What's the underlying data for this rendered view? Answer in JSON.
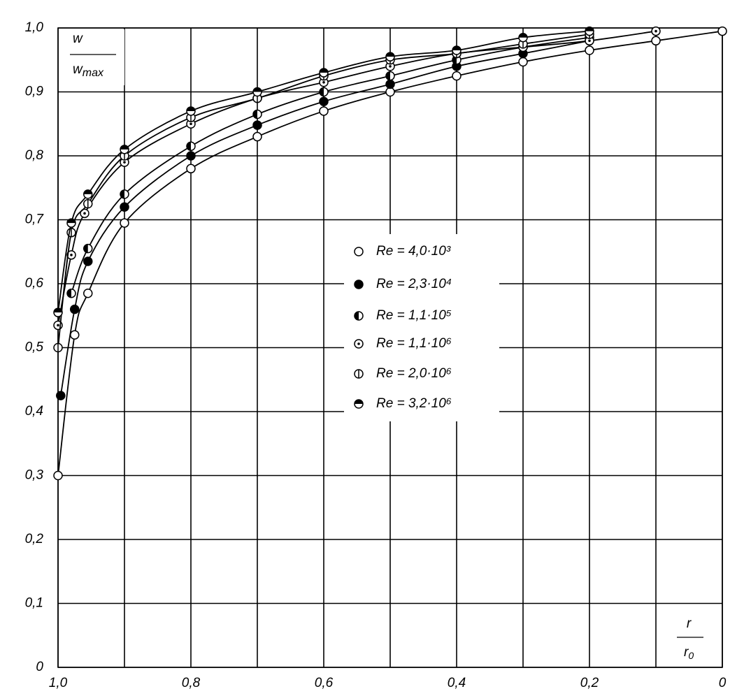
{
  "chart_data": {
    "type": "line",
    "xlabel": {
      "numerator": "r",
      "denominator": "r",
      "subscript": "0"
    },
    "ylabel": {
      "numerator": "w",
      "denominator": "w",
      "subscript": "max"
    },
    "xlim": [
      1,
      0
    ],
    "ylim": [
      0,
      1
    ],
    "xticks": [
      {
        "value": 1,
        "label": "1,0"
      },
      {
        "value": 0.8,
        "label": "0,8"
      },
      {
        "value": 0.6,
        "label": "0,6"
      },
      {
        "value": 0.4,
        "label": "0,4"
      },
      {
        "value": 0.2,
        "label": "0,2"
      },
      0
    ],
    "xgrid": [
      0.9,
      0.7,
      0.5,
      0.3,
      0.1
    ],
    "yticks": [
      0,
      {
        "value": 0.1,
        "label": "0,1"
      },
      {
        "value": 0.2,
        "label": "0,2"
      },
      {
        "value": 0.3,
        "label": "0,3"
      },
      {
        "value": 0.4,
        "label": "0,4"
      },
      {
        "value": 0.5,
        "label": "0,5"
      },
      {
        "value": 0.6,
        "label": "0,6"
      },
      {
        "value": 0.7,
        "label": "0,7"
      },
      {
        "value": 0.8,
        "label": "0,8"
      },
      {
        "value": 0.9,
        "label": "0,9"
      },
      {
        "value": 1,
        "label": "1,0"
      }
    ],
    "grid": true,
    "legend": "center",
    "color": "#000000",
    "series": [
      {
        "name": "Re = 4,0·10³",
        "marker": "open",
        "x": [
          1,
          0.975,
          0.955,
          0.9,
          0.8,
          0.7,
          0.6,
          0.5,
          0.4,
          0.3,
          0.2,
          0.1,
          0
        ],
        "values": [
          0.3,
          0.52,
          0.585,
          0.695,
          0.78,
          0.83,
          0.87,
          0.9,
          0.925,
          0.947,
          0.965,
          0.98,
          0.995
        ]
      },
      {
        "name": "Re = 2,3·10⁴",
        "marker": "filled",
        "x": [
          0.996,
          0.975,
          0.955,
          0.9,
          0.8,
          0.7,
          0.6,
          0.5,
          0.4,
          0.3,
          0.2
        ],
        "values": [
          0.425,
          0.56,
          0.635,
          0.72,
          0.8,
          0.848,
          0.885,
          0.912,
          0.94,
          0.96,
          0.98
        ]
      },
      {
        "name": "Re = 1,1·10⁵",
        "marker": "half-left",
        "x": [
          0.98,
          0.955,
          0.9,
          0.8,
          0.7,
          0.6,
          0.5,
          0.4,
          0.3,
          0.2
        ],
        "values": [
          0.585,
          0.655,
          0.74,
          0.815,
          0.865,
          0.9,
          0.925,
          0.95,
          0.97,
          0.985
        ]
      },
      {
        "name": "Re = 1,1·10⁶",
        "marker": "dotted",
        "x": [
          1,
          0.98,
          0.96,
          0.9,
          0.8,
          0.7,
          0.6,
          0.5,
          0.4,
          0.3,
          0.2,
          0.1
        ],
        "values": [
          0.535,
          0.645,
          0.71,
          0.79,
          0.85,
          0.89,
          0.915,
          0.94,
          0.96,
          0.97,
          0.98,
          0.995
        ]
      },
      {
        "name": "Re = 2,0·10⁶",
        "marker": "bar",
        "x": [
          1,
          0.98,
          0.955,
          0.9,
          0.8,
          0.7,
          0.6,
          0.5,
          0.4,
          0.3,
          0.2
        ],
        "values": [
          0.5,
          0.68,
          0.725,
          0.8,
          0.86,
          0.89,
          0.925,
          0.95,
          0.96,
          0.975,
          0.99
        ]
      },
      {
        "name": "Re = 3,2·10⁶",
        "marker": "half-top",
        "x": [
          1,
          0.98,
          0.955,
          0.9,
          0.8,
          0.7,
          0.6,
          0.5,
          0.4,
          0.3,
          0.2
        ],
        "values": [
          0.555,
          0.695,
          0.74,
          0.81,
          0.87,
          0.9,
          0.93,
          0.955,
          0.965,
          0.985,
          0.995
        ]
      }
    ]
  }
}
